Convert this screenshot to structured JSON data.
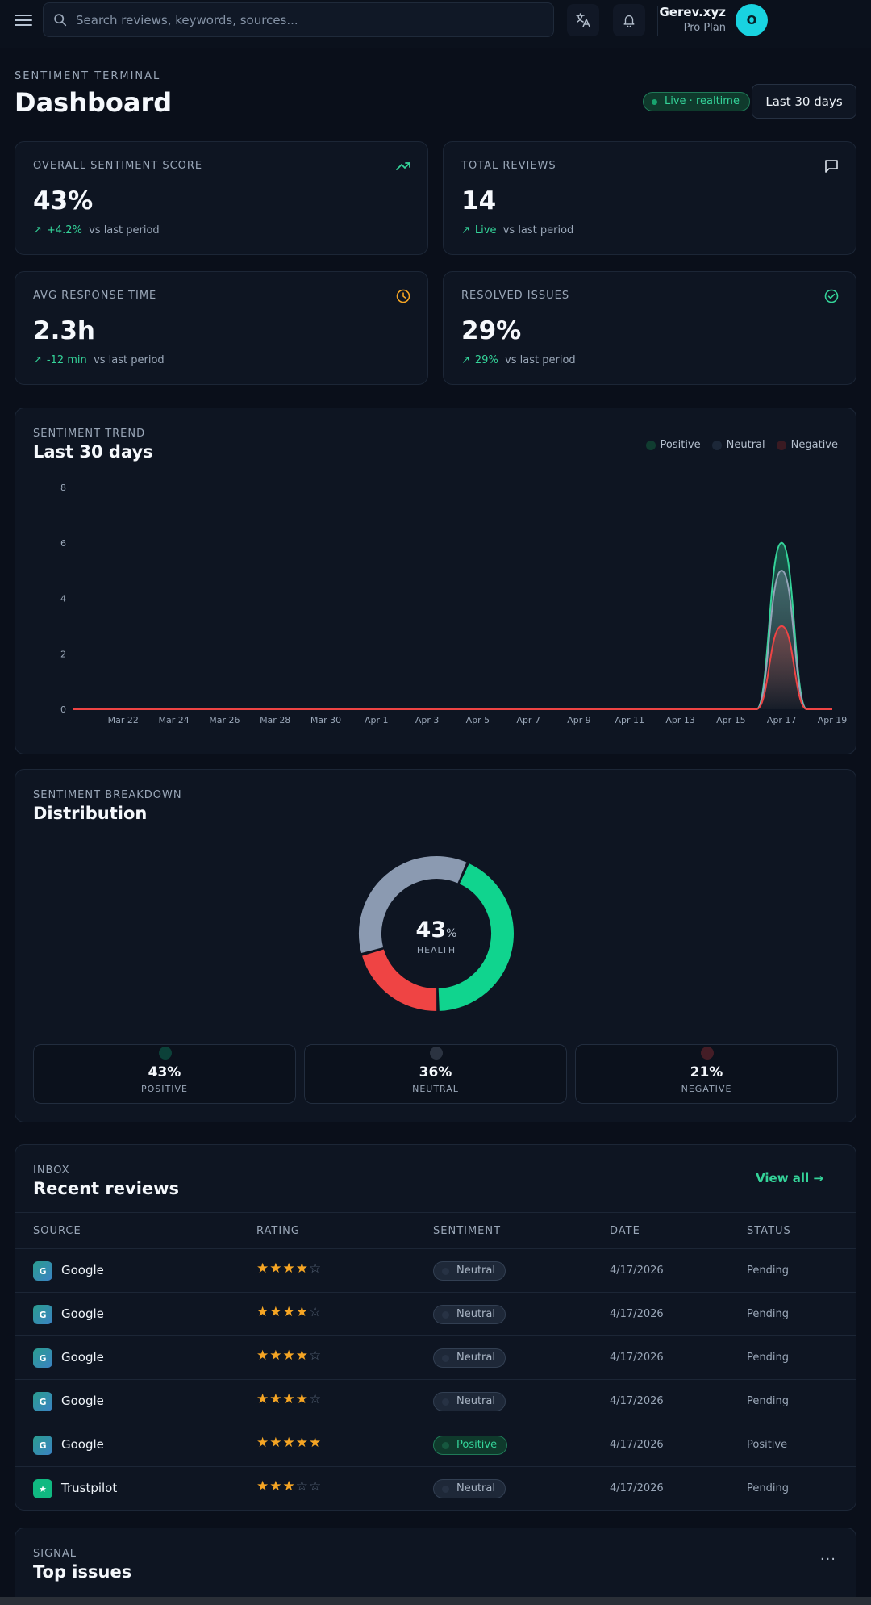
{
  "header": {
    "search_placeholder": "Search reviews, keywords, sources...",
    "user_name": "Gerev.xyz",
    "user_plan": "Pro Plan",
    "avatar_initial": "O"
  },
  "page": {
    "eyebrow": "SENTIMENT TERMINAL",
    "title": "Dashboard",
    "live_label": "Live · realtime",
    "range_label": "Last 30 days"
  },
  "kpis": [
    {
      "label": "OVERALL SENTIMENT SCORE",
      "value": "43%",
      "delta": "+4.2%",
      "delta_suffix": "vs last period",
      "icon": "trending-up-icon"
    },
    {
      "label": "TOTAL REVIEWS",
      "value": "14",
      "delta": "Live",
      "delta_suffix": "vs last period",
      "icon": "message-icon"
    },
    {
      "label": "AVG RESPONSE TIME",
      "value": "2.3h",
      "delta": "-12 min",
      "delta_suffix": "vs last period",
      "icon": "clock-icon"
    },
    {
      "label": "RESOLVED ISSUES",
      "value": "29%",
      "delta": "29%",
      "delta_suffix": "vs last period",
      "icon": "check-circle-icon"
    }
  ],
  "trend": {
    "eyebrow": "SENTIMENT TREND",
    "title": "Last 30 days",
    "legend": [
      "Positive",
      "Neutral",
      "Negative"
    ],
    "colors": {
      "positive": "#34d399",
      "neutral": "#94a3b8",
      "negative": "#ef4444"
    }
  },
  "chart_data": {
    "type": "area",
    "x": [
      "Mar 20",
      "Mar 21",
      "Mar 22",
      "Mar 23",
      "Mar 24",
      "Mar 25",
      "Mar 26",
      "Mar 27",
      "Mar 28",
      "Mar 29",
      "Mar 30",
      "Mar 31",
      "Apr 1",
      "Apr 2",
      "Apr 3",
      "Apr 4",
      "Apr 5",
      "Apr 6",
      "Apr 7",
      "Apr 8",
      "Apr 9",
      "Apr 10",
      "Apr 11",
      "Apr 12",
      "Apr 13",
      "Apr 14",
      "Apr 15",
      "Apr 16",
      "Apr 17",
      "Apr 18",
      "Apr 19"
    ],
    "x_tick_labels": [
      "Mar 22",
      "Mar 24",
      "Mar 26",
      "Mar 28",
      "Mar 30",
      "Apr 1",
      "Apr 3",
      "Apr 5",
      "Apr 7",
      "Apr 9",
      "Apr 11",
      "Apr 13",
      "Apr 15",
      "Apr 17",
      "Apr 19"
    ],
    "series": [
      {
        "name": "Positive",
        "values": [
          0,
          0,
          0,
          0,
          0,
          0,
          0,
          0,
          0,
          0,
          0,
          0,
          0,
          0,
          0,
          0,
          0,
          0,
          0,
          0,
          0,
          0,
          0,
          0,
          0,
          0,
          0,
          0,
          6,
          0,
          0
        ]
      },
      {
        "name": "Neutral",
        "values": [
          0,
          0,
          0,
          0,
          0,
          0,
          0,
          0,
          0,
          0,
          0,
          0,
          0,
          0,
          0,
          0,
          0,
          0,
          0,
          0,
          0,
          0,
          0,
          0,
          0,
          0,
          0,
          0,
          5,
          0,
          0
        ]
      },
      {
        "name": "Negative",
        "values": [
          0,
          0,
          0,
          0,
          0,
          0,
          0,
          0,
          0,
          0,
          0,
          0,
          0,
          0,
          0,
          0,
          0,
          0,
          0,
          0,
          0,
          0,
          0,
          0,
          0,
          0,
          0,
          0,
          3,
          0,
          0
        ]
      }
    ],
    "y_ticks": [
      0,
      2,
      4,
      6,
      8
    ],
    "ylim": [
      0,
      8
    ],
    "grid": false,
    "legend_position": "top-right"
  },
  "distribution": {
    "eyebrow": "SENTIMENT BREAKDOWN",
    "title": "Distribution",
    "health_value": "43",
    "health_unit": "%",
    "health_label": "HEALTH",
    "segments": [
      {
        "name": "positive",
        "value": 43,
        "color": "#10d48e"
      },
      {
        "name": "negative",
        "value": 21,
        "color": "#ef4444"
      },
      {
        "name": "neutral",
        "value": 36,
        "color": "#8b9ab1"
      }
    ],
    "stats": [
      {
        "value": "43%",
        "label": "POSITIVE",
        "color": "#10d48e"
      },
      {
        "value": "36%",
        "label": "NEUTRAL",
        "color": "#8b9ab1"
      },
      {
        "value": "21%",
        "label": "NEGATIVE",
        "color": "#ef4444"
      }
    ]
  },
  "reviews": {
    "eyebrow": "INBOX",
    "title": "Recent reviews",
    "view_all": "View all →",
    "columns": [
      "SOURCE",
      "RATING",
      "SENTIMENT",
      "DATE",
      "STATUS"
    ],
    "rows": [
      {
        "source": "Google",
        "icon": "G",
        "rating": 4,
        "sentiment": "Neutral",
        "date": "4/17/2026",
        "status": "Pending"
      },
      {
        "source": "Google",
        "icon": "G",
        "rating": 4,
        "sentiment": "Neutral",
        "date": "4/17/2026",
        "status": "Pending"
      },
      {
        "source": "Google",
        "icon": "G",
        "rating": 4,
        "sentiment": "Neutral",
        "date": "4/17/2026",
        "status": "Pending"
      },
      {
        "source": "Google",
        "icon": "G",
        "rating": 4,
        "sentiment": "Neutral",
        "date": "4/17/2026",
        "status": "Pending"
      },
      {
        "source": "Google",
        "icon": "G",
        "rating": 5,
        "sentiment": "Positive",
        "date": "4/17/2026",
        "status": "Positive"
      },
      {
        "source": "Trustpilot",
        "icon": "★",
        "rating": 3,
        "sentiment": "Neutral",
        "date": "4/17/2026",
        "status": "Pending"
      }
    ]
  },
  "issues": {
    "eyebrow": "SIGNAL",
    "title": "Top issues",
    "more": "···"
  }
}
